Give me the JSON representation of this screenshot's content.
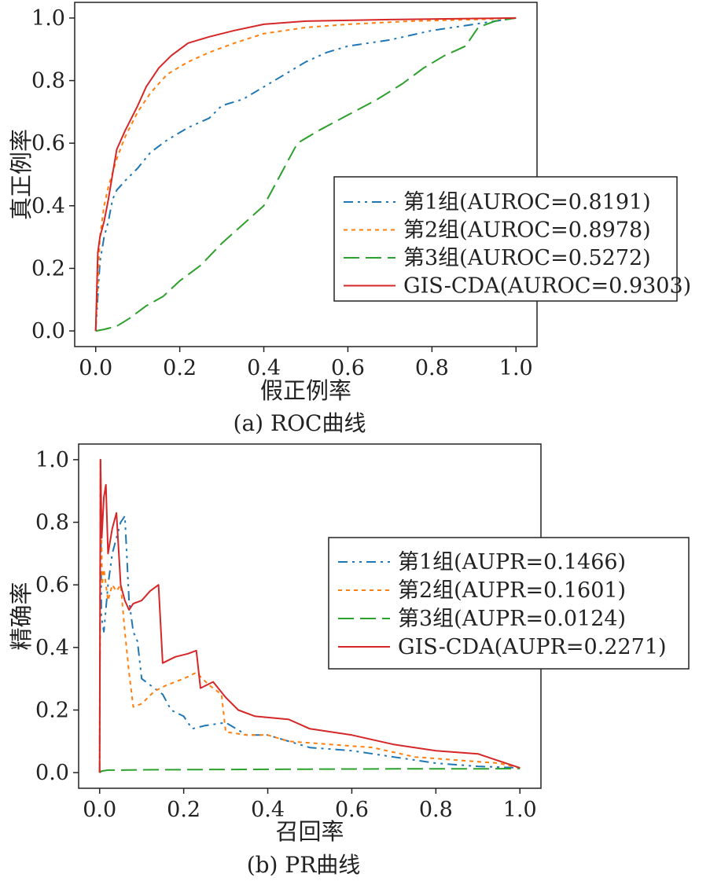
{
  "chart_data": [
    {
      "type": "line",
      "caption": "(a) ROC曲线",
      "xlabel": "假正例率",
      "ylabel": "真正例率",
      "xlim": [
        -0.05,
        1.05
      ],
      "ylim": [
        -0.05,
        1.05
      ],
      "xticks": [
        "0.0",
        "0.2",
        "0.4",
        "0.6",
        "0.8",
        "1.0"
      ],
      "yticks": [
        "0.0",
        "0.2",
        "0.4",
        "0.6",
        "0.8",
        "1.0"
      ],
      "grid": false,
      "legend_position": "center-right",
      "series": [
        {
          "name": "第1组(AUROC=0.8191)",
          "color": "#1f77b4",
          "dash": "12 6 3 6 3 6",
          "points": [
            [
              0,
              0
            ],
            [
              0.01,
              0.22
            ],
            [
              0.02,
              0.3
            ],
            [
              0.03,
              0.35
            ],
            [
              0.04,
              0.42
            ],
            [
              0.05,
              0.45
            ],
            [
              0.07,
              0.48
            ],
            [
              0.1,
              0.52
            ],
            [
              0.13,
              0.57
            ],
            [
              0.17,
              0.61
            ],
            [
              0.22,
              0.65
            ],
            [
              0.27,
              0.68
            ],
            [
              0.3,
              0.72
            ],
            [
              0.35,
              0.74
            ],
            [
              0.4,
              0.78
            ],
            [
              0.45,
              0.82
            ],
            [
              0.5,
              0.86
            ],
            [
              0.55,
              0.89
            ],
            [
              0.6,
              0.91
            ],
            [
              0.7,
              0.93
            ],
            [
              0.8,
              0.96
            ],
            [
              0.9,
              0.98
            ],
            [
              1.0,
              1.0
            ]
          ]
        },
        {
          "name": "第2组(AUROC=0.8978)",
          "color": "#ff7f0e",
          "dash": "5 5",
          "points": [
            [
              0,
              0
            ],
            [
              0.005,
              0.15
            ],
            [
              0.01,
              0.3
            ],
            [
              0.02,
              0.4
            ],
            [
              0.03,
              0.46
            ],
            [
              0.05,
              0.55
            ],
            [
              0.07,
              0.62
            ],
            [
              0.1,
              0.7
            ],
            [
              0.13,
              0.76
            ],
            [
              0.17,
              0.82
            ],
            [
              0.22,
              0.86
            ],
            [
              0.27,
              0.89
            ],
            [
              0.33,
              0.92
            ],
            [
              0.4,
              0.95
            ],
            [
              0.5,
              0.97
            ],
            [
              0.6,
              0.98
            ],
            [
              0.75,
              0.99
            ],
            [
              0.9,
              0.995
            ],
            [
              1.0,
              1.0
            ]
          ]
        },
        {
          "name": "第3组(AUROC=0.5272)",
          "color": "#2ca02c",
          "dash": "20 8",
          "points": [
            [
              0,
              0
            ],
            [
              0.02,
              0.005
            ],
            [
              0.05,
              0.015
            ],
            [
              0.08,
              0.04
            ],
            [
              0.12,
              0.08
            ],
            [
              0.16,
              0.11
            ],
            [
              0.2,
              0.16
            ],
            [
              0.25,
              0.21
            ],
            [
              0.3,
              0.28
            ],
            [
              0.35,
              0.34
            ],
            [
              0.4,
              0.4
            ],
            [
              0.44,
              0.5
            ],
            [
              0.48,
              0.6
            ],
            [
              0.53,
              0.64
            ],
            [
              0.6,
              0.69
            ],
            [
              0.67,
              0.74
            ],
            [
              0.73,
              0.79
            ],
            [
              0.78,
              0.84
            ],
            [
              0.83,
              0.88
            ],
            [
              0.88,
              0.91
            ],
            [
              0.91,
              0.97
            ],
            [
              0.95,
              0.99
            ],
            [
              1.0,
              1.0
            ]
          ]
        },
        {
          "name": "GIS-CDA(AUROC=0.9303)",
          "color": "#d62728",
          "dash": "",
          "points": [
            [
              0,
              0
            ],
            [
              0.005,
              0.25
            ],
            [
              0.01,
              0.3
            ],
            [
              0.02,
              0.35
            ],
            [
              0.03,
              0.42
            ],
            [
              0.04,
              0.5
            ],
            [
              0.05,
              0.58
            ],
            [
              0.07,
              0.64
            ],
            [
              0.1,
              0.72
            ],
            [
              0.12,
              0.78
            ],
            [
              0.15,
              0.84
            ],
            [
              0.18,
              0.88
            ],
            [
              0.22,
              0.92
            ],
            [
              0.27,
              0.94
            ],
            [
              0.33,
              0.96
            ],
            [
              0.4,
              0.98
            ],
            [
              0.5,
              0.99
            ],
            [
              0.7,
              0.995
            ],
            [
              1.0,
              1.0
            ]
          ]
        }
      ]
    },
    {
      "type": "line",
      "caption": "(b) PR曲线",
      "xlabel": "召回率",
      "ylabel": "精确率",
      "xlim": [
        -0.05,
        1.05
      ],
      "ylim": [
        -0.05,
        1.05
      ],
      "xticks": [
        "0.0",
        "0.2",
        "0.4",
        "0.6",
        "0.8",
        "1.0"
      ],
      "yticks": [
        "0.0",
        "0.2",
        "0.4",
        "0.6",
        "0.8",
        "1.0"
      ],
      "grid": false,
      "legend_position": "center-right",
      "series": [
        {
          "name": "第1组(AUPR=0.1466)",
          "color": "#1f77b4",
          "dash": "12 6 3 6 3 6",
          "points": [
            [
              0,
              0
            ],
            [
              0.002,
              1.0
            ],
            [
              0.004,
              0.5
            ],
            [
              0.01,
              0.45
            ],
            [
              0.02,
              0.6
            ],
            [
              0.03,
              0.7
            ],
            [
              0.04,
              0.75
            ],
            [
              0.05,
              0.8
            ],
            [
              0.06,
              0.82
            ],
            [
              0.07,
              0.55
            ],
            [
              0.08,
              0.45
            ],
            [
              0.09,
              0.42
            ],
            [
              0.1,
              0.3
            ],
            [
              0.12,
              0.28
            ],
            [
              0.15,
              0.25
            ],
            [
              0.17,
              0.2
            ],
            [
              0.2,
              0.18
            ],
            [
              0.22,
              0.14
            ],
            [
              0.25,
              0.15
            ],
            [
              0.3,
              0.16
            ],
            [
              0.35,
              0.12
            ],
            [
              0.4,
              0.12
            ],
            [
              0.5,
              0.08
            ],
            [
              0.6,
              0.07
            ],
            [
              0.7,
              0.05
            ],
            [
              0.8,
              0.03
            ],
            [
              0.9,
              0.02
            ],
            [
              1.0,
              0.015
            ]
          ]
        },
        {
          "name": "第2组(AUPR=0.1601)",
          "color": "#ff7f0e",
          "dash": "5 5",
          "points": [
            [
              0,
              0
            ],
            [
              0.002,
              1.0
            ],
            [
              0.006,
              0.6
            ],
            [
              0.01,
              0.65
            ],
            [
              0.02,
              0.55
            ],
            [
              0.03,
              0.6
            ],
            [
              0.04,
              0.58
            ],
            [
              0.05,
              0.6
            ],
            [
              0.06,
              0.45
            ],
            [
              0.07,
              0.32
            ],
            [
              0.08,
              0.21
            ],
            [
              0.1,
              0.22
            ],
            [
              0.13,
              0.26
            ],
            [
              0.16,
              0.28
            ],
            [
              0.2,
              0.3
            ],
            [
              0.23,
              0.32
            ],
            [
              0.26,
              0.28
            ],
            [
              0.29,
              0.25
            ],
            [
              0.3,
              0.13
            ],
            [
              0.35,
              0.12
            ],
            [
              0.4,
              0.12
            ],
            [
              0.45,
              0.1
            ],
            [
              0.55,
              0.09
            ],
            [
              0.65,
              0.08
            ],
            [
              0.75,
              0.05
            ],
            [
              0.85,
              0.04
            ],
            [
              0.95,
              0.03
            ],
            [
              1.0,
              0.015
            ]
          ]
        },
        {
          "name": "第3组(AUPR=0.0124)",
          "color": "#2ca02c",
          "dash": "20 8",
          "points": [
            [
              0,
              0
            ],
            [
              0.005,
              0.005
            ],
            [
              0.02,
              0.008
            ],
            [
              0.05,
              0.008
            ],
            [
              0.1,
              0.009
            ],
            [
              0.3,
              0.01
            ],
            [
              0.5,
              0.011
            ],
            [
              0.7,
              0.012
            ],
            [
              0.9,
              0.012
            ],
            [
              1.0,
              0.013
            ]
          ]
        },
        {
          "name": "GIS-CDA(AUPR=0.2271)",
          "color": "#d62728",
          "dash": "",
          "points": [
            [
              0,
              0
            ],
            [
              0.002,
              1.0
            ],
            [
              0.005,
              0.75
            ],
            [
              0.01,
              0.88
            ],
            [
              0.015,
              0.92
            ],
            [
              0.02,
              0.7
            ],
            [
              0.03,
              0.78
            ],
            [
              0.04,
              0.83
            ],
            [
              0.05,
              0.6
            ],
            [
              0.06,
              0.55
            ],
            [
              0.07,
              0.52
            ],
            [
              0.08,
              0.54
            ],
            [
              0.1,
              0.55
            ],
            [
              0.12,
              0.58
            ],
            [
              0.14,
              0.6
            ],
            [
              0.15,
              0.35
            ],
            [
              0.18,
              0.37
            ],
            [
              0.21,
              0.38
            ],
            [
              0.23,
              0.39
            ],
            [
              0.24,
              0.27
            ],
            [
              0.27,
              0.29
            ],
            [
              0.3,
              0.24
            ],
            [
              0.33,
              0.2
            ],
            [
              0.37,
              0.18
            ],
            [
              0.45,
              0.17
            ],
            [
              0.5,
              0.14
            ],
            [
              0.6,
              0.12
            ],
            [
              0.7,
              0.09
            ],
            [
              0.8,
              0.07
            ],
            [
              0.9,
              0.06
            ],
            [
              1.0,
              0.015
            ]
          ]
        }
      ]
    }
  ]
}
